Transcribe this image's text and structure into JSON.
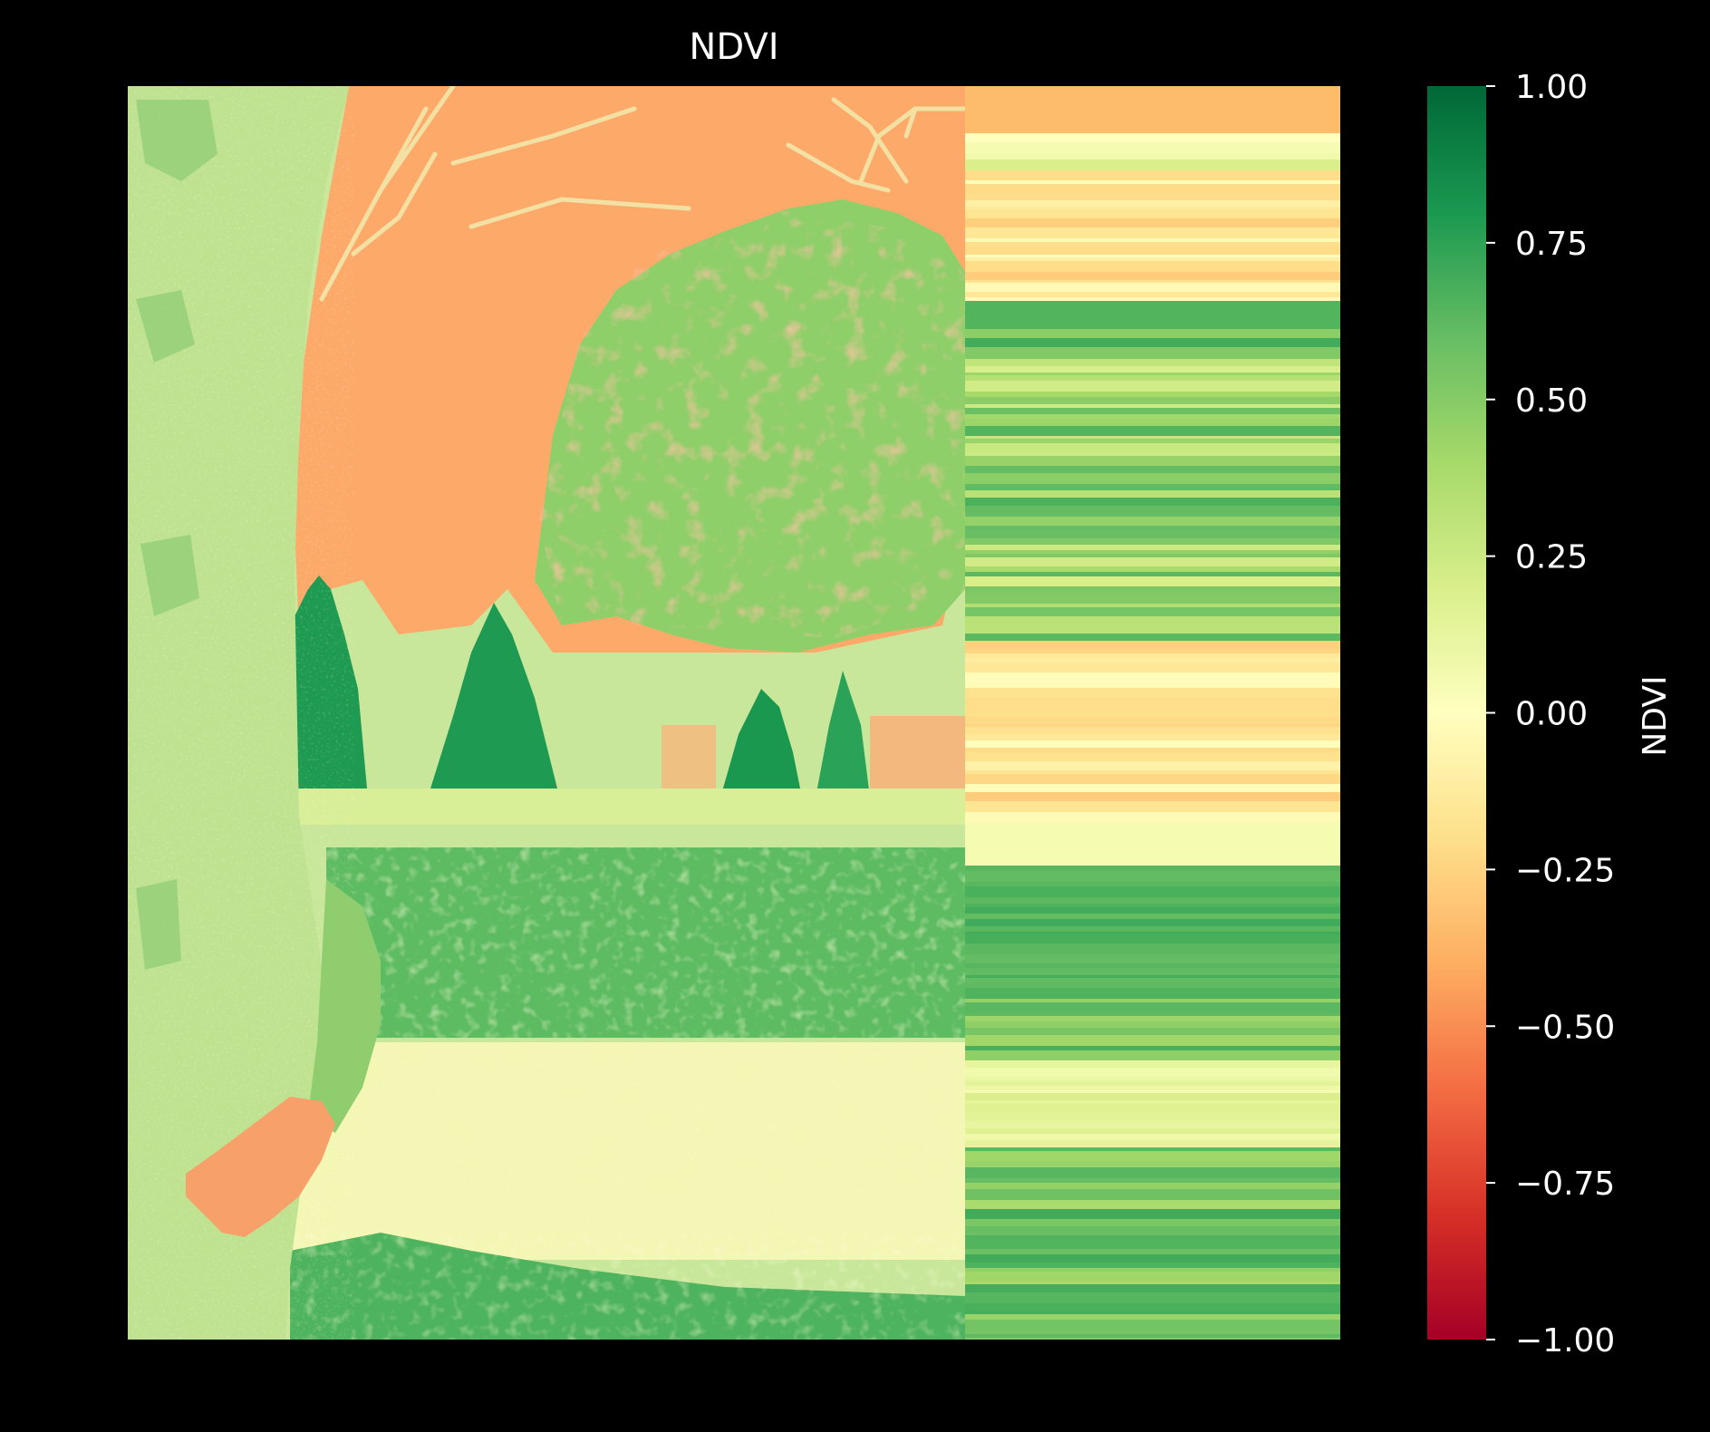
{
  "figure": {
    "background": "#000000",
    "foreground": "#ffffff"
  },
  "chart_data": {
    "type": "heatmap",
    "title": "NDVI",
    "xlabel": "",
    "ylabel": "",
    "axes_visible": false,
    "grid": false,
    "colormap": "RdYlGn",
    "image_description": "false-color NDVI raster of a park scene with a tree trunk on the left, a large leafy tree and conifers in the middle, grass and path in the foreground; the right portion of the raster shows horizontal striping",
    "colorbar": {
      "label": "NDVI",
      "vmin": -1.0,
      "vmax": 1.0,
      "ticks": [
        1.0,
        0.75,
        0.5,
        0.25,
        0.0,
        -0.25,
        -0.5,
        -0.75,
        -1.0
      ],
      "tick_labels": [
        "1.00",
        "0.75",
        "0.50",
        "0.25",
        "0.00",
        "−0.25",
        "−0.50",
        "−0.75",
        "−1.00"
      ],
      "colors": {
        "stops": [
          {
            "value": -1.0,
            "color": "#a50026"
          },
          {
            "value": -0.8,
            "color": "#d73027"
          },
          {
            "value": -0.6,
            "color": "#f46d43"
          },
          {
            "value": -0.4,
            "color": "#fdae61"
          },
          {
            "value": -0.2,
            "color": "#fee08b"
          },
          {
            "value": 0.0,
            "color": "#ffffbf"
          },
          {
            "value": 0.2,
            "color": "#d9ef8b"
          },
          {
            "value": 0.4,
            "color": "#a6d96a"
          },
          {
            "value": 0.6,
            "color": "#66bd63"
          },
          {
            "value": 0.8,
            "color": "#1a9850"
          },
          {
            "value": 1.0,
            "color": "#006837"
          }
        ]
      }
    },
    "regions": {
      "sky": -0.35,
      "tree_trunk": 0.3,
      "leafy_tree": 0.45,
      "conifers": 0.85,
      "grass": 0.65,
      "path": 0.1,
      "hand": -0.4
    }
  }
}
